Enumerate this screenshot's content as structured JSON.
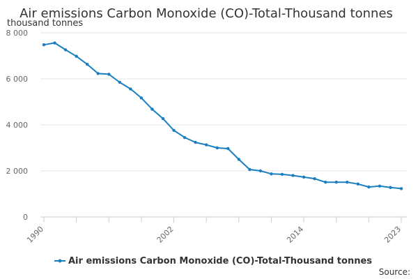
{
  "chart_data": {
    "type": "line",
    "title": "Air emissions Carbon Monoxide (CO)-Total-Thousand tonnes",
    "unit_label": "thousand tonnes",
    "xlabel": "",
    "ylabel": "",
    "xlim": [
      1990,
      2023
    ],
    "ylim": [
      0,
      8000
    ],
    "y_ticks": [
      0,
      2000,
      4000,
      6000,
      8000
    ],
    "y_tick_labels": [
      "0",
      "2 000",
      "4 000",
      "6 000",
      "8 000"
    ],
    "x_labeled_ticks": [
      1990,
      2002,
      2014,
      2023
    ],
    "x_minor_ticks": [
      1993,
      1996,
      1999,
      2005,
      2008,
      2011,
      2017,
      2020
    ],
    "grid": true,
    "legend_position": "bottom",
    "color": "#1a7fc1",
    "x": [
      1990,
      1991,
      1992,
      1993,
      1994,
      1995,
      1996,
      1997,
      1998,
      1999,
      2000,
      2001,
      2002,
      2003,
      2004,
      2005,
      2006,
      2007,
      2008,
      2009,
      2010,
      2011,
      2012,
      2013,
      2014,
      2015,
      2016,
      2017,
      2018,
      2019,
      2020,
      2021,
      2022,
      2023
    ],
    "series": [
      {
        "name": "Air emissions Carbon Monoxide (CO)-Total-Thousand tonnes",
        "values": [
          7480,
          7560,
          7260,
          6980,
          6630,
          6230,
          6200,
          5850,
          5560,
          5170,
          4680,
          4270,
          3760,
          3450,
          3240,
          3130,
          3000,
          2970,
          2500,
          2060,
          2000,
          1870,
          1850,
          1800,
          1730,
          1660,
          1510,
          1510,
          1510,
          1430,
          1300,
          1340,
          1280,
          1230
        ]
      }
    ]
  },
  "source_label": "Source:"
}
